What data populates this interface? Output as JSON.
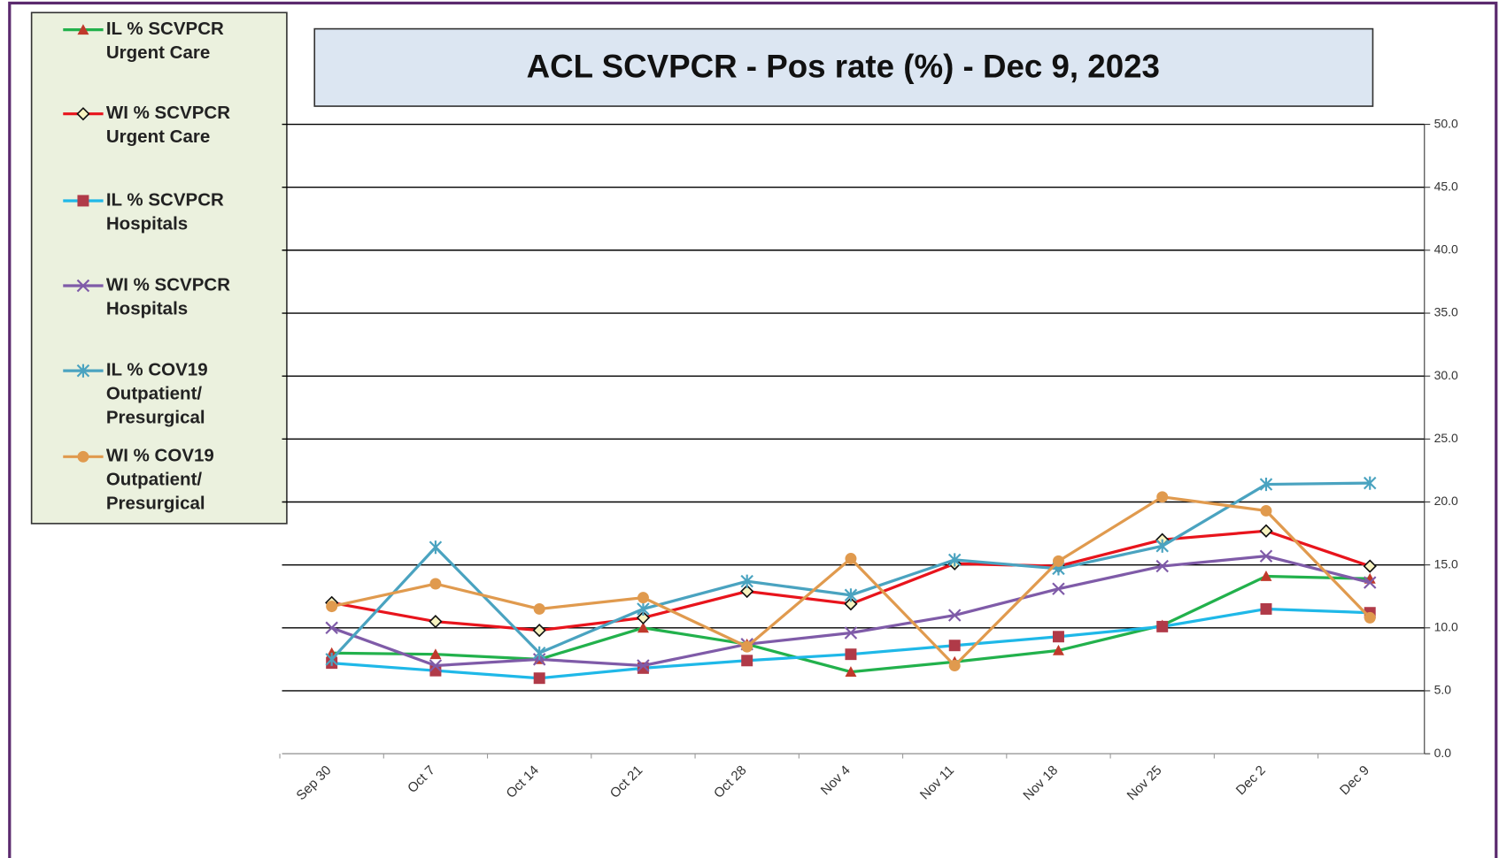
{
  "chart_data": {
    "type": "line",
    "title": "ACL SCVPCR -  Pos rate (%) - Dec 9, 2023",
    "categories": [
      "Sep 30",
      "Oct 7",
      "Oct 14",
      "Oct 21",
      "Oct 28",
      "Nov 4",
      "Nov 11",
      "Nov 18",
      "Nov 25",
      "Dec 2",
      "Dec 9"
    ],
    "series": [
      {
        "name": "IL % SCVPCR\nUrgent Care",
        "color": "#22b14c",
        "marker": "triangle",
        "marker_color": "#c0392b",
        "values": [
          8.0,
          7.9,
          7.5,
          10.0,
          8.7,
          6.5,
          7.3,
          8.2,
          10.2,
          14.1,
          13.9
        ]
      },
      {
        "name": "WI % SCVPCR\nUrgent Care",
        "color": "#e8141c",
        "marker": "diamond",
        "marker_color": "#6b8e23",
        "values": [
          12.0,
          10.5,
          9.8,
          10.8,
          12.9,
          11.9,
          15.1,
          14.9,
          17.0,
          17.7,
          14.9
        ]
      },
      {
        "name": "IL % SCVPCR\n Hospitals",
        "color": "#1fb8e8",
        "marker": "square",
        "marker_color": "#b03a48",
        "values": [
          7.2,
          6.6,
          6.0,
          6.8,
          7.4,
          7.9,
          8.6,
          9.3,
          10.1,
          11.5,
          11.2
        ]
      },
      {
        "name": "WI % SCVPCR\nHospitals",
        "color": "#7f5ba8",
        "marker": "x",
        "marker_color": "#7f5ba8",
        "values": [
          10.0,
          7.0,
          7.5,
          7.0,
          8.7,
          9.6,
          11.0,
          13.1,
          14.9,
          15.7,
          13.6
        ]
      },
      {
        "name": "IL % COV19\nOutpatient/\nPresurgical",
        "color": "#4aa3c0",
        "marker": "star",
        "marker_color": "#4aa3c0",
        "values": [
          7.5,
          16.4,
          8.0,
          11.5,
          13.7,
          12.6,
          15.4,
          14.7,
          16.5,
          21.4,
          21.5
        ]
      },
      {
        "name": "WI % COV19\nOutpatient/\nPresurgical",
        "color": "#e09a4e",
        "marker": "circle",
        "marker_color": "#e09a4e",
        "values": [
          11.7,
          13.5,
          11.5,
          12.4,
          8.5,
          15.5,
          7.0,
          15.3,
          20.4,
          19.3,
          10.8
        ]
      }
    ],
    "ylim": [
      0,
      50
    ],
    "yticks": [
      {
        "value": 0,
        "label": "0.0"
      },
      {
        "value": 5,
        "label": "5.0"
      },
      {
        "value": 10,
        "label": "10.0"
      },
      {
        "value": 15,
        "label": "15.0"
      },
      {
        "value": 20,
        "label": "20.0"
      },
      {
        "value": 25,
        "label": "25.0"
      },
      {
        "value": 30,
        "label": "30.0"
      },
      {
        "value": 35,
        "label": "35.0"
      },
      {
        "value": 40,
        "label": "40.0"
      },
      {
        "value": 45,
        "label": "45.0"
      },
      {
        "value": 50,
        "label": "50.0"
      }
    ],
    "grid": true
  }
}
